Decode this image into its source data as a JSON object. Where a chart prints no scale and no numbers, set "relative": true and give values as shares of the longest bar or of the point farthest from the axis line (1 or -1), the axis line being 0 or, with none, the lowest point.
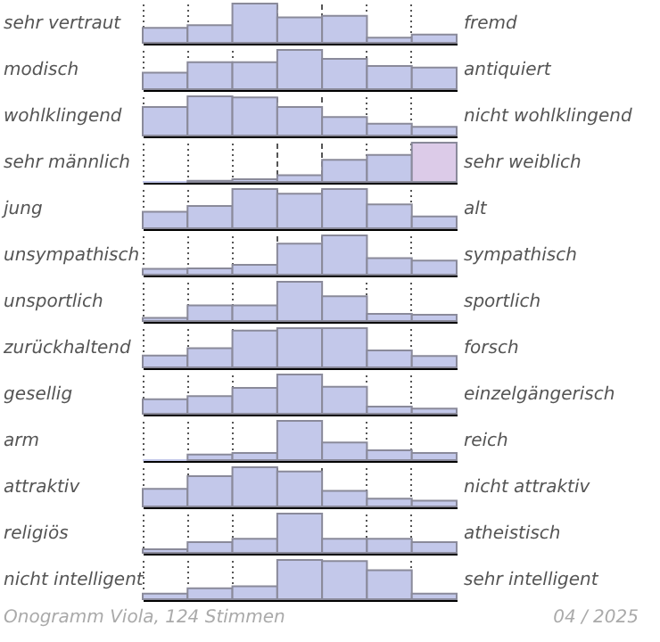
{
  "chart_data": [
    {
      "type": "bar",
      "relative": true,
      "grid": "x",
      "ylabel": "sehr vertraut",
      "y2label": "fremd",
      "categories": [
        null,
        null,
        null,
        null,
        null,
        null,
        null
      ],
      "values": [
        0.38,
        0.45,
        1,
        0.65,
        0.69,
        0.13,
        0.21
      ],
      "color": "#c3c8ea"
    },
    {
      "type": "bar",
      "relative": true,
      "grid": "x",
      "ylabel": "modisch",
      "y2label": "antiquiert",
      "categories": [
        null,
        null,
        null,
        null,
        null,
        null,
        null
      ],
      "values": [
        0.42,
        0.69,
        0.69,
        1,
        0.77,
        0.59,
        0.55
      ],
      "color": "#c3c8ea"
    },
    {
      "type": "bar",
      "relative": true,
      "grid": "x",
      "ylabel": "wohlklingend",
      "y2label": "nicht wohlklingend",
      "categories": [
        null,
        null,
        null,
        null,
        null,
        null,
        null
      ],
      "values": [
        0.73,
        1,
        0.97,
        0.73,
        0.47,
        0.3,
        0.22
      ],
      "color": "#c3c8ea"
    },
    {
      "type": "bar",
      "relative": true,
      "grid": "x",
      "ylabel": "sehr männlich",
      "y2label": "sehr weiblich",
      "categories": [
        null,
        null,
        null,
        null,
        null,
        null,
        null
      ],
      "values": [
        0,
        0.03,
        0.07,
        0.17,
        0.56,
        0.69,
        1
      ],
      "colors": [
        "#c3c8ea",
        "#c3c8ea",
        "#c3c8ea",
        "#c3c8ea",
        "#c3c8ea",
        "#c3c8ea",
        "#dccbe8"
      ]
    },
    {
      "type": "bar",
      "relative": true,
      "grid": "x",
      "ylabel": "jung",
      "y2label": "alt",
      "categories": [
        null,
        null,
        null,
        null,
        null,
        null,
        null
      ],
      "values": [
        0.42,
        0.57,
        1,
        0.88,
        1,
        0.61,
        0.3
      ],
      "color": "#c3c8ea"
    },
    {
      "type": "bar",
      "relative": true,
      "grid": "x",
      "ylabel": "unsympathisch",
      "y2label": "sympathisch",
      "categories": [
        null,
        null,
        null,
        null,
        null,
        null,
        null
      ],
      "values": [
        0.15,
        0.16,
        0.25,
        0.79,
        1,
        0.42,
        0.36
      ],
      "color": "#c3c8ea"
    },
    {
      "type": "bar",
      "relative": true,
      "grid": "x",
      "ylabel": "unsportlich",
      "y2label": "sportlich",
      "categories": [
        null,
        null,
        null,
        null,
        null,
        null,
        null
      ],
      "values": [
        0.08,
        0.4,
        0.4,
        1,
        0.63,
        0.18,
        0.16
      ],
      "color": "#c3c8ea"
    },
    {
      "type": "bar",
      "relative": true,
      "grid": "x",
      "ylabel": "zurückhaltend",
      "y2label": "forsch",
      "categories": [
        null,
        null,
        null,
        null,
        null,
        null,
        null
      ],
      "values": [
        0.3,
        0.49,
        0.94,
        1,
        1,
        0.43,
        0.29
      ],
      "color": "#c3c8ea"
    },
    {
      "type": "bar",
      "relative": true,
      "grid": "x",
      "ylabel": "gesellig",
      "y2label": "einzelgängerisch",
      "categories": [
        null,
        null,
        null,
        null,
        null,
        null,
        null
      ],
      "values": [
        0.37,
        0.45,
        0.66,
        1,
        0.69,
        0.18,
        0.13
      ],
      "color": "#c3c8ea"
    },
    {
      "type": "bar",
      "relative": true,
      "grid": "x",
      "ylabel": "arm",
      "y2label": "reich",
      "categories": [
        null,
        null,
        null,
        null,
        null,
        null,
        null
      ],
      "values": [
        0,
        0.14,
        0.18,
        1,
        0.45,
        0.25,
        0.18
      ],
      "color": "#c3c8ea"
    },
    {
      "type": "bar",
      "relative": true,
      "grid": "x",
      "ylabel": "attraktiv",
      "y2label": "nicht attraktiv",
      "categories": [
        null,
        null,
        null,
        null,
        null,
        null,
        null
      ],
      "values": [
        0.45,
        0.77,
        1,
        0.89,
        0.4,
        0.2,
        0.15
      ],
      "color": "#c3c8ea"
    },
    {
      "type": "bar",
      "relative": true,
      "grid": "x",
      "ylabel": "religiös",
      "y2label": "atheistisch",
      "categories": [
        null,
        null,
        null,
        null,
        null,
        null,
        null
      ],
      "values": [
        0.09,
        0.27,
        0.36,
        1,
        0.36,
        0.36,
        0.27
      ],
      "color": "#c3c8ea"
    },
    {
      "type": "bar",
      "relative": true,
      "grid": "x",
      "ylabel": "nicht intelligent",
      "y2label": "sehr intelligent",
      "categories": [
        null,
        null,
        null,
        null,
        null,
        null,
        null
      ],
      "values": [
        0.14,
        0.28,
        0.33,
        1,
        0.97,
        0.74,
        0.14
      ],
      "color": "#c3c8ea",
      "annotations": [
        "Onogramm Viola, 124 Stimmen",
        "04 / 2025"
      ]
    }
  ]
}
